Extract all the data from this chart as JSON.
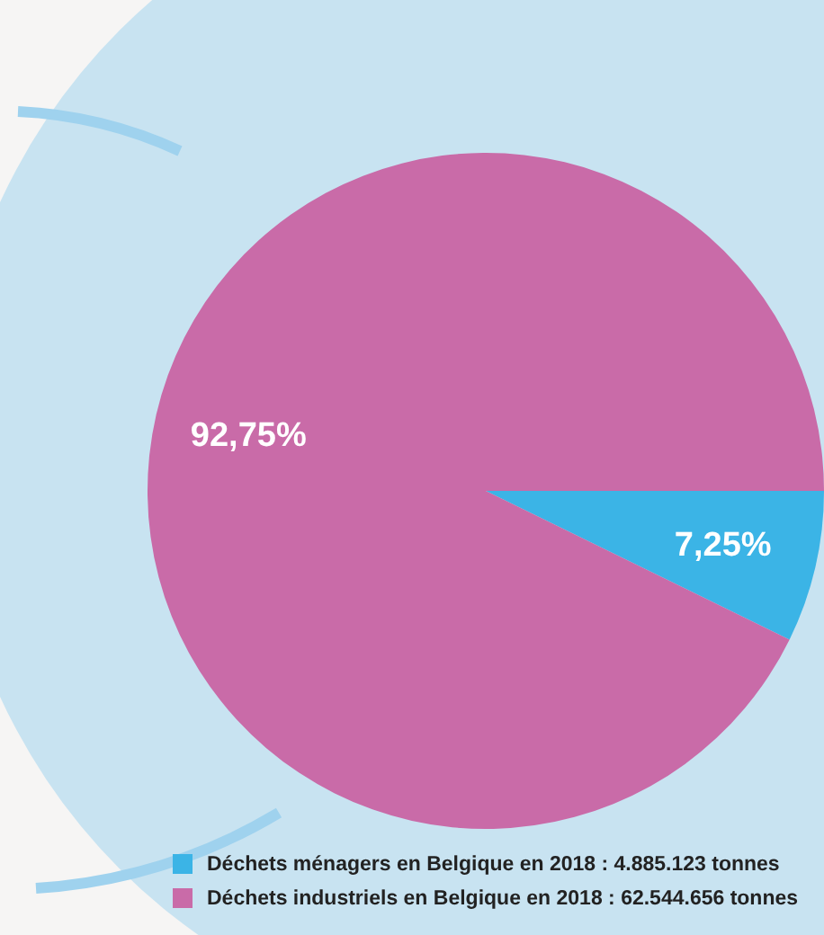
{
  "chart_data": {
    "type": "pie",
    "categories": [
      "Déchets ménagers en Belgique en 2018 : 4.885.123 tonnes",
      "Déchets industriels en Belgique en 2018 : 62.544.656 tonnes"
    ],
    "values": [
      7.25,
      92.75
    ],
    "colors": [
      "#3bb4e6",
      "#c96ba8"
    ],
    "value_labels": [
      "7,25%",
      "92,75%"
    ],
    "legend": "bottom"
  }
}
